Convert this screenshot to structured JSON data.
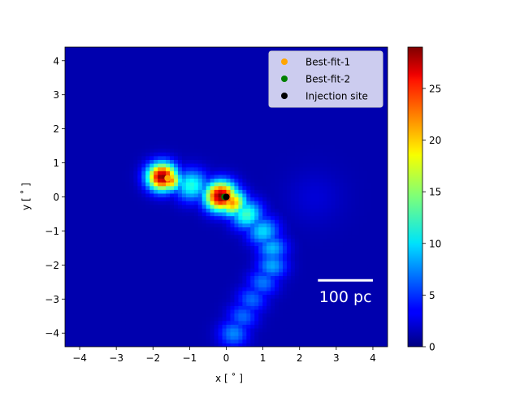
{
  "chart_data": {
    "type": "heatmap",
    "title": "",
    "xlabel": "x [$^\\circ$]",
    "ylabel": "y [$^\\circ$]",
    "xlabel_display": "x [ ˚ ]",
    "ylabel_display": "y [ ˚ ]",
    "xlim": [
      -4.4,
      4.4
    ],
    "ylim": [
      -4.4,
      4.4
    ],
    "xticks": [
      -4,
      -3,
      -2,
      -1,
      0,
      1,
      2,
      3,
      4
    ],
    "yticks": [
      -4,
      -3,
      -2,
      -1,
      0,
      1,
      2,
      3,
      4
    ],
    "xtick_labels": [
      "−4",
      "−3",
      "−2",
      "−1",
      "0",
      "1",
      "2",
      "3",
      "4"
    ],
    "ytick_labels": [
      "−4",
      "−3",
      "−2",
      "−1",
      "0",
      "1",
      "2",
      "3",
      "4"
    ],
    "colormap": "jet",
    "colorbar": {
      "range": [
        0,
        29
      ],
      "ticks": [
        0,
        5,
        10,
        15,
        20,
        25
      ],
      "tick_labels": [
        "0",
        "5",
        "10",
        "15",
        "20",
        "25"
      ]
    },
    "density_features": [
      {
        "x": -1.75,
        "y": 0.6,
        "peak": 29,
        "sigma": 0.28
      },
      {
        "x": -1.55,
        "y": 0.5,
        "peak": 22,
        "sigma": 0.22
      },
      {
        "x": -0.15,
        "y": 0.03,
        "peak": 29,
        "sigma": 0.3
      },
      {
        "x": 0.15,
        "y": -0.15,
        "peak": 21,
        "sigma": 0.27
      },
      {
        "x": -0.95,
        "y": 0.35,
        "peak": 11,
        "sigma": 0.32
      },
      {
        "x": 0.55,
        "y": -0.5,
        "peak": 12,
        "sigma": 0.3
      },
      {
        "x": 1.0,
        "y": -1.0,
        "peak": 9,
        "sigma": 0.3
      },
      {
        "x": 1.25,
        "y": -1.5,
        "peak": 8,
        "sigma": 0.28
      },
      {
        "x": 1.25,
        "y": -2.0,
        "peak": 7.5,
        "sigma": 0.28
      },
      {
        "x": 1.0,
        "y": -2.5,
        "peak": 6,
        "sigma": 0.28
      },
      {
        "x": 0.7,
        "y": -3.0,
        "peak": 5.5,
        "sigma": 0.28
      },
      {
        "x": 0.45,
        "y": -3.5,
        "peak": 5.5,
        "sigma": 0.28
      },
      {
        "x": 0.2,
        "y": -4.0,
        "peak": 6.5,
        "sigma": 0.28
      },
      {
        "x": 2.4,
        "y": 0.0,
        "peak": 1.2,
        "sigma": 0.55
      }
    ],
    "series": [
      {
        "name": "Best-fit-1",
        "type": "scatter",
        "color": "#ffa500",
        "points": [
          {
            "x": -1.6,
            "y": 0.55
          }
        ]
      },
      {
        "name": "Best-fit-2",
        "type": "scatter",
        "color": "#008000",
        "points": [
          {
            "x": -0.05,
            "y": 0.0
          }
        ]
      },
      {
        "name": "Injection site",
        "type": "scatter",
        "color": "#000000",
        "points": [
          {
            "x": 0.0,
            "y": 0.0
          }
        ]
      }
    ],
    "legend": {
      "position": "top-right"
    },
    "scalebar": {
      "label": "100 pc",
      "x_start": 2.5,
      "x_end": 4.0,
      "y": -2.45,
      "color": "#ffffff"
    }
  }
}
